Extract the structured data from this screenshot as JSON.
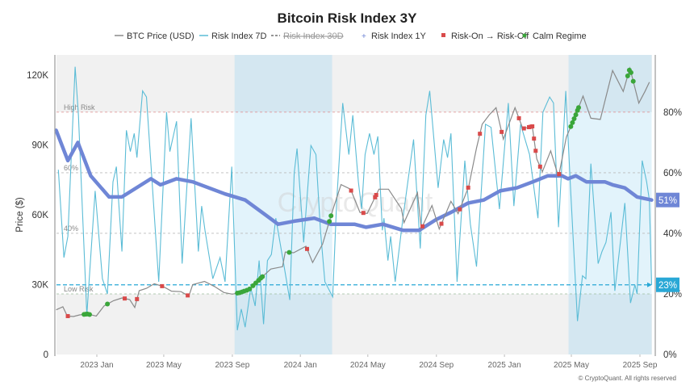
{
  "chart_data": {
    "type": "line",
    "title": "Bitcoin Risk Index 3Y",
    "ylabel": "Price ($)",
    "y_left_ticks": [
      "0",
      "30K",
      "60K",
      "90K",
      "120K"
    ],
    "y_left_values": [
      0,
      30000,
      60000,
      90000,
      120000
    ],
    "y_right_ticks": [
      "0%",
      "20%",
      "40%",
      "60%",
      "80%"
    ],
    "y_right_values": [
      0,
      20,
      40,
      60,
      80
    ],
    "ylim_left": [
      0,
      128700
    ],
    "ylim_right": [
      0,
      98.9
    ],
    "x_ticks": [
      "2023 Jan",
      "2023 May",
      "2023 Sep",
      "2024 Jan",
      "2024 May",
      "2024 Sep",
      "2025 Jan",
      "2025 May",
      "2025 Sep"
    ],
    "x_tick_dates": [
      "2023-01-01",
      "2023-05-01",
      "2023-09-01",
      "2024-01-01",
      "2024-05-01",
      "2024-09-01",
      "2025-01-01",
      "2025-05-01",
      "2025-09-01"
    ],
    "xlim": [
      "2022-10-20",
      "2025-09-22"
    ],
    "grid": false,
    "legend_placement": "top",
    "legend": [
      {
        "label": "BTC Price (USD)",
        "color": "#8a8a8a",
        "style": "line"
      },
      {
        "label": "Risk Index 7D",
        "color": "#5bbcd6",
        "style": "line"
      },
      {
        "label": "Risk Index 30D",
        "color": "#999999",
        "style": "dashed-hidden"
      },
      {
        "label": "Risk Index 1Y",
        "color": "#6f86d6",
        "style": "cross"
      },
      {
        "label": "Risk-On → Risk-Off",
        "color": "#d94a4a",
        "style": "square"
      },
      {
        "label": "Calm Regime",
        "color": "#3aa63a",
        "style": "dot"
      }
    ],
    "reference_lines": [
      {
        "label": "High Risk",
        "value": 80,
        "color": "#e08a8a"
      },
      {
        "label": "60%",
        "value": 60,
        "color": "#bbbbbb"
      },
      {
        "label": "40%",
        "value": 40,
        "color": "#bbbbbb"
      },
      {
        "label": "Low Risk",
        "value": 20,
        "color": "#9fbf9f"
      }
    ],
    "current_7d": {
      "value": 23,
      "label": "23%",
      "color": "#29a8d6"
    },
    "current_1y": {
      "value": 51,
      "label": "51%",
      "color": "#6f86d6"
    },
    "calm_regimes": [
      [
        "2023-09-05",
        "2024-02-27"
      ],
      [
        "2025-04-26",
        "2025-09-22"
      ]
    ],
    "series": [
      {
        "name": "BTC Price (USD)",
        "axis": "left",
        "color": "#8a8a8a",
        "points": [
          [
            "2022-10-20",
            19200
          ],
          [
            "2022-11-01",
            20500
          ],
          [
            "2022-11-09",
            16500
          ],
          [
            "2022-11-20",
            16300
          ],
          [
            "2022-12-01",
            17000
          ],
          [
            "2022-12-15",
            17400
          ],
          [
            "2022-12-31",
            16500
          ],
          [
            "2023-01-14",
            20900
          ],
          [
            "2023-01-31",
            23100
          ],
          [
            "2023-02-15",
            24300
          ],
          [
            "2023-03-01",
            23600
          ],
          [
            "2023-03-10",
            20200
          ],
          [
            "2023-03-18",
            27400
          ],
          [
            "2023-03-31",
            28400
          ],
          [
            "2023-04-14",
            30400
          ],
          [
            "2023-04-30",
            29200
          ],
          [
            "2023-05-15",
            27200
          ],
          [
            "2023-06-01",
            27000
          ],
          [
            "2023-06-15",
            25100
          ],
          [
            "2023-06-22",
            30000
          ],
          [
            "2023-07-13",
            31400
          ],
          [
            "2023-07-31",
            29200
          ],
          [
            "2023-08-17",
            26600
          ],
          [
            "2023-09-01",
            25900
          ],
          [
            "2023-09-15",
            26600
          ],
          [
            "2023-10-01",
            27900
          ],
          [
            "2023-10-23",
            33000
          ],
          [
            "2023-11-09",
            36700
          ],
          [
            "2023-11-30",
            37700
          ],
          [
            "2023-12-05",
            44000
          ],
          [
            "2023-12-20",
            43700
          ],
          [
            "2024-01-11",
            46500
          ],
          [
            "2024-01-23",
            39500
          ],
          [
            "2024-02-10",
            47500
          ],
          [
            "2024-02-28",
            62000
          ],
          [
            "2024-03-14",
            73000
          ],
          [
            "2024-03-31",
            71000
          ],
          [
            "2024-04-17",
            61000
          ],
          [
            "2024-04-30",
            60600
          ],
          [
            "2024-05-21",
            71000
          ],
          [
            "2024-06-07",
            71000
          ],
          [
            "2024-06-30",
            62700
          ],
          [
            "2024-07-05",
            56600
          ],
          [
            "2024-07-29",
            69500
          ],
          [
            "2024-08-05",
            54000
          ],
          [
            "2024-08-24",
            64000
          ],
          [
            "2024-09-06",
            53900
          ],
          [
            "2024-09-27",
            65800
          ],
          [
            "2024-10-10",
            60500
          ],
          [
            "2024-10-29",
            72300
          ],
          [
            "2024-11-12",
            88700
          ],
          [
            "2024-11-22",
            98900
          ],
          [
            "2024-12-05",
            103000
          ],
          [
            "2024-12-17",
            106000
          ],
          [
            "2024-12-30",
            92500
          ],
          [
            "2025-01-20",
            106000
          ],
          [
            "2025-02-03",
            97000
          ],
          [
            "2025-02-20",
            98000
          ],
          [
            "2025-02-28",
            84000
          ],
          [
            "2025-03-10",
            78500
          ],
          [
            "2025-03-25",
            87500
          ],
          [
            "2025-04-08",
            76300
          ],
          [
            "2025-04-22",
            93400
          ],
          [
            "2025-05-09",
            103000
          ],
          [
            "2025-05-22",
            111000
          ],
          [
            "2025-06-05",
            101500
          ],
          [
            "2025-06-22",
            101000
          ],
          [
            "2025-07-14",
            122000
          ],
          [
            "2025-08-02",
            113000
          ],
          [
            "2025-08-14",
            123000
          ],
          [
            "2025-08-30",
            108000
          ],
          [
            "2025-09-10",
            113000
          ],
          [
            "2025-09-18",
            117000
          ]
        ]
      },
      {
        "name": "Risk Index 7D",
        "axis": "right",
        "color": "#5bbcd6",
        "points": [
          [
            "2022-10-24",
            61
          ],
          [
            "2022-11-03",
            32
          ],
          [
            "2022-11-10",
            39
          ],
          [
            "2022-11-23",
            95
          ],
          [
            "2022-11-29",
            79
          ],
          [
            "2022-12-14",
            13
          ],
          [
            "2022-12-29",
            54
          ],
          [
            "2023-01-11",
            25
          ],
          [
            "2023-01-20",
            20
          ],
          [
            "2023-01-30",
            57
          ],
          [
            "2023-02-05",
            62
          ],
          [
            "2023-02-15",
            34
          ],
          [
            "2023-02-23",
            74
          ],
          [
            "2023-03-02",
            67
          ],
          [
            "2023-03-09",
            73
          ],
          [
            "2023-03-14",
            65
          ],
          [
            "2023-03-24",
            87
          ],
          [
            "2023-03-31",
            85
          ],
          [
            "2023-04-22",
            24
          ],
          [
            "2023-05-06",
            80
          ],
          [
            "2023-05-12",
            67
          ],
          [
            "2023-05-24",
            77
          ],
          [
            "2023-06-03",
            30
          ],
          [
            "2023-06-19",
            78
          ],
          [
            "2023-07-02",
            34
          ],
          [
            "2023-07-08",
            49
          ],
          [
            "2023-07-14",
            41
          ],
          [
            "2023-07-28",
            25
          ],
          [
            "2023-08-10",
            32
          ],
          [
            "2023-08-19",
            24
          ],
          [
            "2023-08-31",
            62
          ],
          [
            "2023-09-10",
            8
          ],
          [
            "2023-09-17",
            15
          ],
          [
            "2023-09-24",
            9
          ],
          [
            "2023-10-04",
            22
          ],
          [
            "2023-10-12",
            16
          ],
          [
            "2023-10-19",
            31
          ],
          [
            "2023-10-27",
            10
          ],
          [
            "2023-11-03",
            31
          ],
          [
            "2023-11-10",
            33
          ],
          [
            "2023-11-18",
            45
          ],
          [
            "2023-12-02",
            30
          ],
          [
            "2023-12-13",
            18
          ],
          [
            "2023-12-21",
            60
          ],
          [
            "2023-12-26",
            68
          ],
          [
            "2024-01-07",
            37
          ],
          [
            "2024-01-20",
            69
          ],
          [
            "2024-01-29",
            66
          ],
          [
            "2024-02-06",
            41
          ],
          [
            "2024-02-14",
            24
          ],
          [
            "2024-02-28",
            19
          ],
          [
            "2024-03-06",
            50
          ],
          [
            "2024-03-17",
            83
          ],
          [
            "2024-03-28",
            66
          ],
          [
            "2024-04-04",
            79
          ],
          [
            "2024-04-14",
            57
          ],
          [
            "2024-04-20",
            48
          ],
          [
            "2024-04-26",
            66
          ],
          [
            "2024-05-04",
            73
          ],
          [
            "2024-05-12",
            66
          ],
          [
            "2024-05-19",
            72
          ],
          [
            "2024-05-27",
            41
          ],
          [
            "2024-05-30",
            45
          ],
          [
            "2024-06-06",
            31
          ],
          [
            "2024-06-11",
            39
          ],
          [
            "2024-06-19",
            24
          ],
          [
            "2024-07-03",
            45
          ],
          [
            "2024-07-22",
            71
          ],
          [
            "2024-08-03",
            35
          ],
          [
            "2024-08-13",
            79
          ],
          [
            "2024-08-20",
            87
          ],
          [
            "2024-09-04",
            55
          ],
          [
            "2024-09-14",
            71
          ],
          [
            "2024-09-21",
            65
          ],
          [
            "2024-09-27",
            73
          ],
          [
            "2024-10-08",
            24
          ],
          [
            "2024-10-22",
            64
          ],
          [
            "2024-11-01",
            43
          ],
          [
            "2024-11-12",
            29
          ],
          [
            "2024-11-28",
            76
          ],
          [
            "2024-12-08",
            75
          ],
          [
            "2024-12-23",
            48
          ],
          [
            "2025-01-08",
            83
          ],
          [
            "2025-01-18",
            49
          ],
          [
            "2025-01-30",
            76
          ],
          [
            "2025-02-15",
            66
          ],
          [
            "2025-03-02",
            45
          ],
          [
            "2025-03-11",
            80
          ],
          [
            "2025-03-23",
            85
          ],
          [
            "2025-03-30",
            83
          ],
          [
            "2025-04-08",
            42
          ],
          [
            "2025-04-21",
            87
          ],
          [
            "2025-04-29",
            57
          ],
          [
            "2025-05-12",
            11
          ],
          [
            "2025-05-21",
            26
          ],
          [
            "2025-05-27",
            25
          ],
          [
            "2025-06-05",
            63
          ],
          [
            "2025-06-18",
            30
          ],
          [
            "2025-06-25",
            34
          ],
          [
            "2025-07-02",
            37
          ],
          [
            "2025-07-11",
            47
          ],
          [
            "2025-07-18",
            21
          ],
          [
            "2025-08-05",
            50
          ],
          [
            "2025-08-15",
            17
          ],
          [
            "2025-08-23",
            23
          ],
          [
            "2025-08-27",
            20
          ],
          [
            "2025-09-05",
            64
          ],
          [
            "2025-09-13",
            57
          ],
          [
            "2025-09-18",
            51
          ],
          [
            "2025-09-22",
            23
          ]
        ]
      },
      {
        "name": "Risk Index 1Y",
        "axis": "right",
        "color": "#6f86d6",
        "points": [
          [
            "2022-10-20",
            74
          ],
          [
            "2022-11-10",
            64
          ],
          [
            "2022-11-28",
            70
          ],
          [
            "2022-12-21",
            59
          ],
          [
            "2023-01-23",
            52
          ],
          [
            "2023-02-15",
            52
          ],
          [
            "2023-04-08",
            58
          ],
          [
            "2023-04-25",
            56
          ],
          [
            "2023-05-24",
            58
          ],
          [
            "2023-06-22",
            57
          ],
          [
            "2023-08-19",
            53
          ],
          [
            "2023-09-24",
            51
          ],
          [
            "2023-10-31",
            46
          ],
          [
            "2023-11-22",
            43
          ],
          [
            "2023-12-21",
            44
          ],
          [
            "2024-01-26",
            45
          ],
          [
            "2024-02-24",
            43
          ],
          [
            "2024-04-07",
            43
          ],
          [
            "2024-04-28",
            42
          ],
          [
            "2024-05-28",
            43
          ],
          [
            "2024-07-03",
            41
          ],
          [
            "2024-08-01",
            41
          ],
          [
            "2024-08-31",
            44.5
          ],
          [
            "2024-09-28",
            47
          ],
          [
            "2024-10-28",
            50
          ],
          [
            "2024-11-25",
            51
          ],
          [
            "2024-12-24",
            54
          ],
          [
            "2025-01-23",
            55
          ],
          [
            "2025-02-21",
            57
          ],
          [
            "2025-03-20",
            59
          ],
          [
            "2025-04-14",
            59
          ],
          [
            "2025-04-25",
            58
          ],
          [
            "2025-05-09",
            59
          ],
          [
            "2025-05-28",
            57
          ],
          [
            "2025-06-30",
            57
          ],
          [
            "2025-07-14",
            56
          ],
          [
            "2025-08-05",
            55
          ],
          [
            "2025-08-27",
            52
          ],
          [
            "2025-09-22",
            51
          ]
        ]
      }
    ],
    "markers": {
      "risk_on_to_off": [
        "2022-11-10",
        "2023-02-20",
        "2023-03-14",
        "2023-04-28",
        "2023-06-13",
        "2024-01-13",
        "2024-04-01",
        "2024-04-23",
        "2024-05-14",
        "2024-05-16",
        "2024-08-07",
        "2024-09-10",
        "2024-10-13",
        "2024-10-28",
        "2024-11-18",
        "2024-12-27",
        "2025-01-27",
        "2025-02-05",
        "2025-02-14",
        "2025-02-17",
        "2025-02-20",
        "2025-02-23",
        "2025-02-26",
        "2025-03-06",
        "2025-04-09"
      ],
      "calm_regime": [
        "2022-12-09",
        "2022-12-12",
        "2022-12-15",
        "2022-12-19",
        "2023-01-20",
        "2023-09-10",
        "2023-09-14",
        "2023-09-18",
        "2023-09-22",
        "2023-09-27",
        "2023-10-02",
        "2023-10-08",
        "2023-10-13",
        "2023-10-18",
        "2023-10-22",
        "2023-10-25",
        "2023-12-12",
        "2024-02-22",
        "2024-02-25",
        "2025-04-30",
        "2025-05-03",
        "2025-05-06",
        "2025-05-09",
        "2025-05-12",
        "2025-05-14",
        "2025-08-10",
        "2025-08-13",
        "2025-08-16",
        "2025-08-20"
      ]
    },
    "watermark": "CryptoQuant",
    "copyright": "© CryptoQuant. All rights reserved"
  }
}
